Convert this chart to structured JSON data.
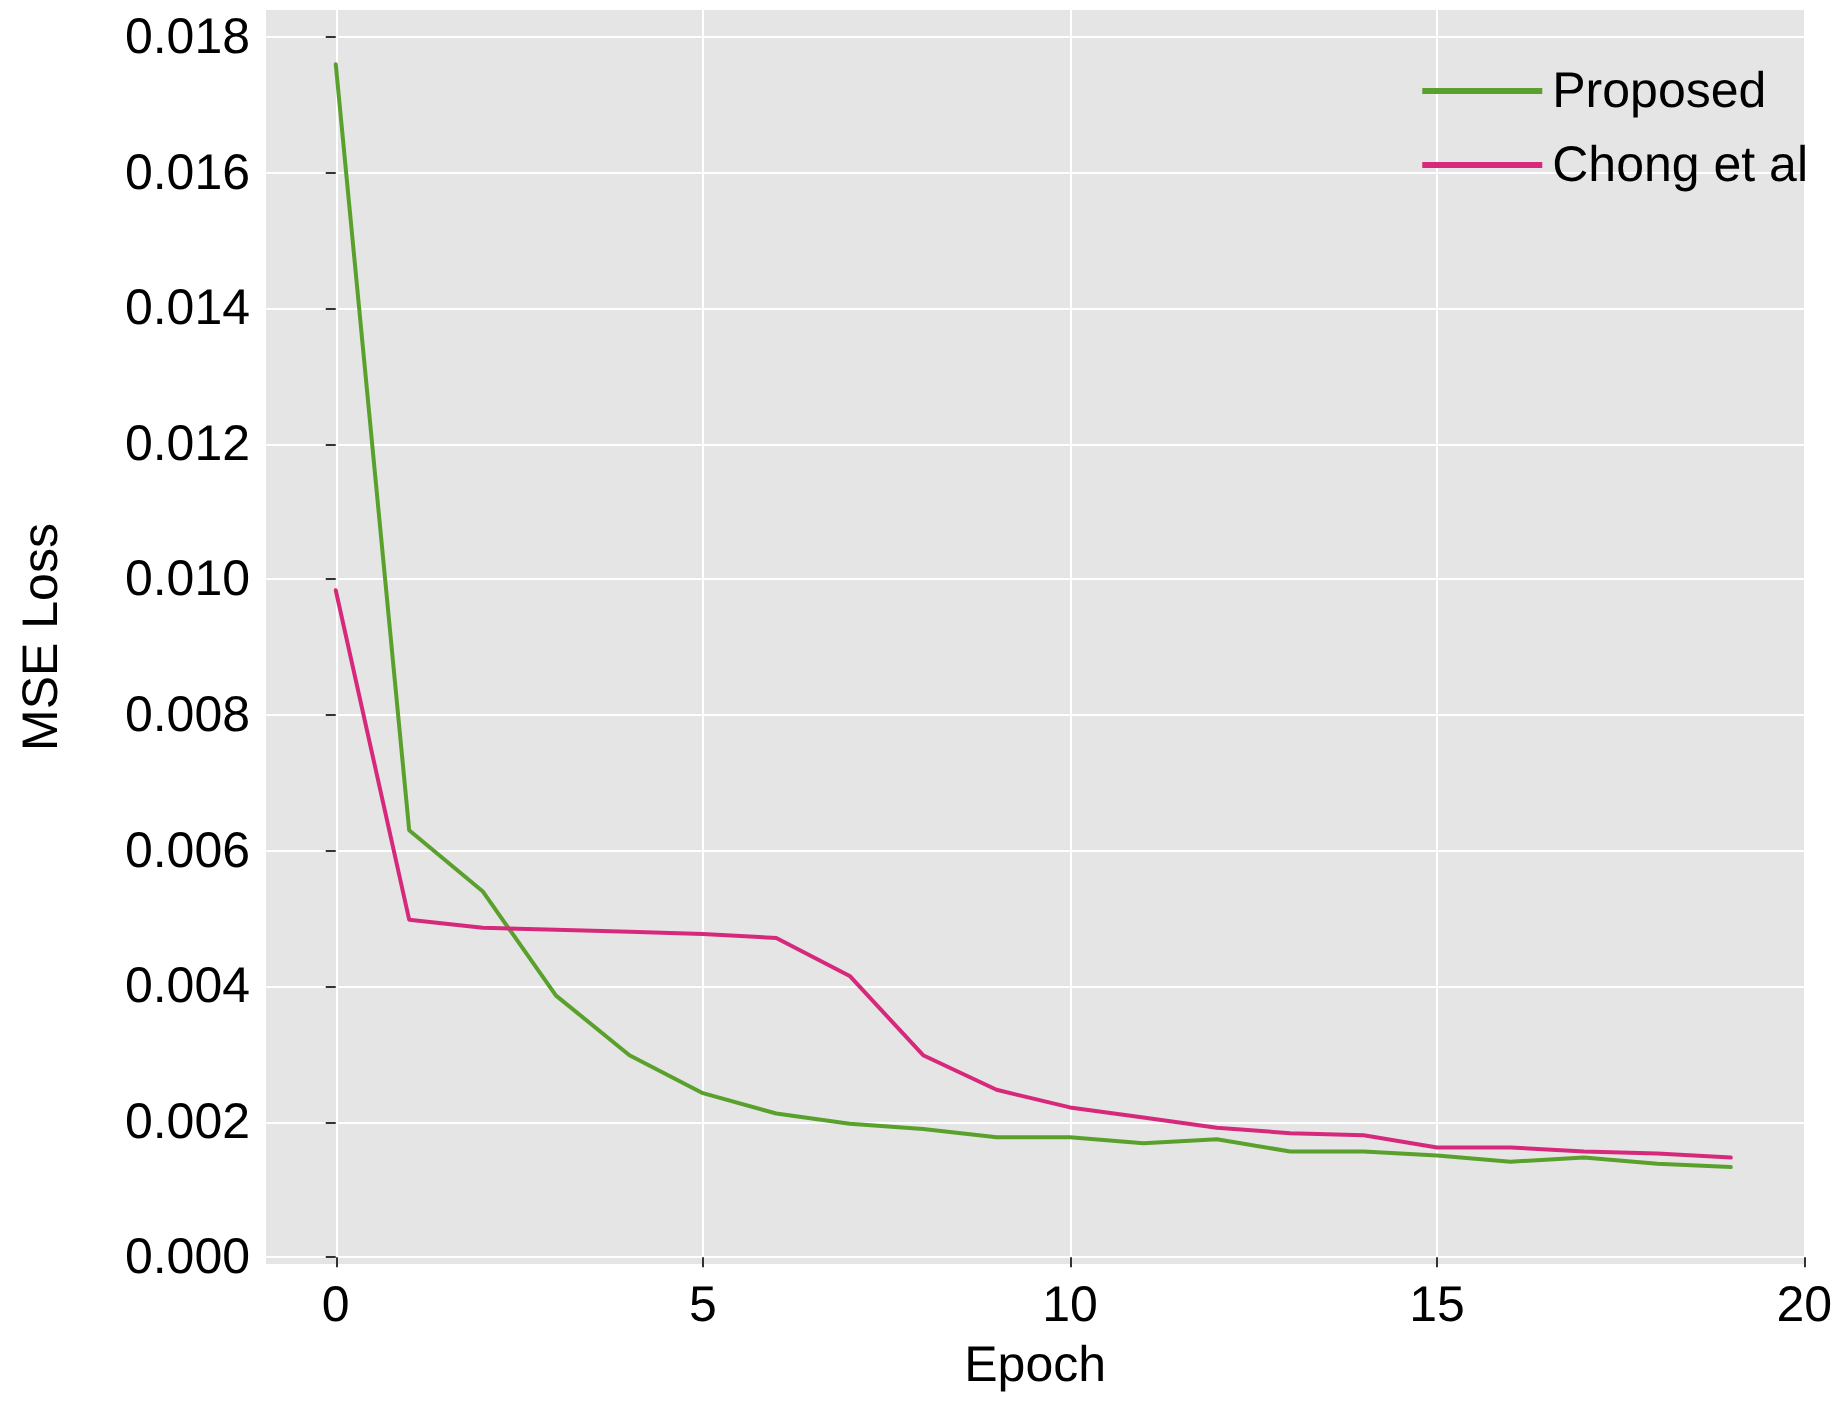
{
  "chart_data": {
    "type": "line",
    "xlabel": "Epoch",
    "ylabel": "MSE Loss",
    "x": [
      0,
      1,
      2,
      3,
      4,
      5,
      6,
      7,
      8,
      9,
      10,
      11,
      12,
      13,
      14,
      15,
      16,
      17,
      18,
      19
    ],
    "series": [
      {
        "name": "Proposed",
        "color": "#5aa02c",
        "values": [
          0.0176,
          0.0063,
          0.0054,
          0.00386,
          0.00298,
          0.00242,
          0.00212,
          0.00197,
          0.00189,
          0.00177,
          0.00177,
          0.00168,
          0.00174,
          0.00156,
          0.00156,
          0.0015,
          0.00141,
          0.00147,
          0.00138,
          0.00133
        ]
      },
      {
        "name": "Chong et al",
        "color": "#d6297c",
        "values": [
          0.00984,
          0.00498,
          0.00486,
          0.00483,
          0.0048,
          0.00477,
          0.00471,
          0.00415,
          0.00298,
          0.00247,
          0.00221,
          0.00206,
          0.00191,
          0.00183,
          0.0018,
          0.00162,
          0.00162,
          0.00156,
          0.00153,
          0.00147
        ]
      }
    ],
    "xlim": [
      -0.95,
      20
    ],
    "xticks": [
      0,
      5,
      10,
      15,
      20
    ],
    "ylim": [
      -0.0001,
      0.0184
    ],
    "yticks": [
      {
        "value": 0,
        "label": "0.000"
      },
      {
        "value": 0.002,
        "label": "0.002"
      },
      {
        "value": 0.004,
        "label": "0.004"
      },
      {
        "value": 0.006,
        "label": "0.006"
      },
      {
        "value": 0.008,
        "label": "0.008"
      },
      {
        "value": 0.01,
        "label": "0.010"
      },
      {
        "value": 0.012,
        "label": "0.012"
      },
      {
        "value": 0.014,
        "label": "0.014"
      },
      {
        "value": 0.016,
        "label": "0.016"
      },
      {
        "value": 0.018,
        "label": "0.018"
      }
    ],
    "grid": true,
    "legend": "top right",
    "marker": "none",
    "line_style": "solid"
  }
}
